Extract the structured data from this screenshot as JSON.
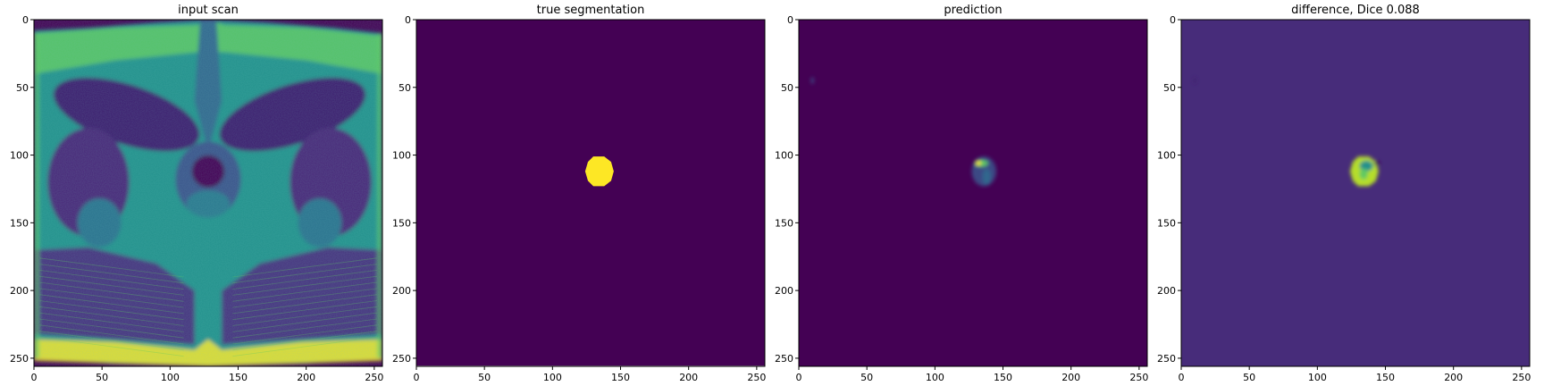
{
  "figure": {
    "panels": [
      {
        "title": "input scan",
        "content": "mri",
        "background_color": "#440154",
        "region_color": "#fde725"
      },
      {
        "title": "true segmentation",
        "content": "mask",
        "background_color": "#440154",
        "region_color": "#fde725"
      },
      {
        "title": "prediction",
        "content": "prediction",
        "background_color": "#440154",
        "region_color": "#3b528b"
      },
      {
        "title": "difference, Dice 0.088",
        "content": "difference",
        "background_color": "#472c7a",
        "region_color": "#b5de2b"
      }
    ],
    "x_ticks": [
      0,
      50,
      100,
      150,
      200,
      250
    ],
    "y_ticks": [
      0,
      50,
      100,
      150,
      200,
      250
    ],
    "axis_range": [
      0,
      256
    ],
    "palette": {
      "viridis_dark": "#440154",
      "viridis_purple": "#472c7a",
      "viridis_blue": "#3b528b",
      "viridis_teal": "#21918c",
      "viridis_green": "#5ec962",
      "viridis_yellow": "#fde725"
    }
  }
}
